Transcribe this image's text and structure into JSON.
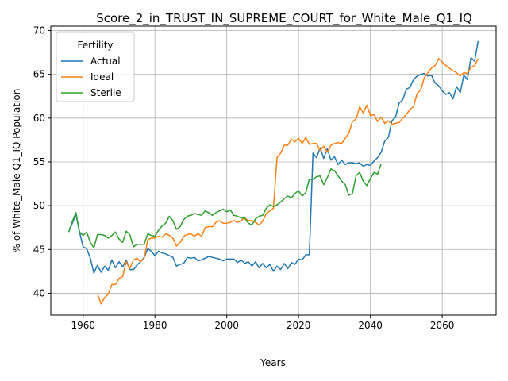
{
  "chart_data": {
    "type": "line",
    "title": "Score_2_in_TRUST_IN_SUPREME_COURT_for_White_Male_Q1_IQ",
    "xlabel": "Years",
    "ylabel": "% of White_Male Q1_IQ Population",
    "xlim": [
      1951,
      2075
    ],
    "ylim": [
      37.5,
      70.5
    ],
    "xticks": [
      1960,
      1980,
      2000,
      2020,
      2040,
      2060
    ],
    "yticks": [
      40,
      45,
      50,
      55,
      60,
      65,
      70
    ],
    "grid": true,
    "legend": {
      "title": "Fertility",
      "position": "top-left"
    },
    "series": [
      {
        "name": "Actual",
        "color": "#1f77b4",
        "points": [
          [
            1956,
            47.0
          ],
          [
            1957,
            48.0
          ],
          [
            1958,
            49.0
          ],
          [
            1959,
            47.0
          ],
          [
            1960,
            45.3
          ],
          [
            1961,
            45.1
          ],
          [
            1962,
            44.0
          ],
          [
            1963,
            42.3
          ],
          [
            1964,
            43.2
          ],
          [
            1965,
            42.4
          ],
          [
            1966,
            43.1
          ],
          [
            1967,
            42.6
          ],
          [
            1968,
            43.8
          ],
          [
            1969,
            42.9
          ],
          [
            1970,
            43.6
          ],
          [
            1971,
            43.0
          ],
          [
            1972,
            43.8
          ],
          [
            1973,
            42.7
          ],
          [
            1974,
            42.7
          ],
          [
            1975,
            43.2
          ],
          [
            1976,
            43.6
          ],
          [
            1977,
            44.1
          ],
          [
            1978,
            45.1
          ],
          [
            1979,
            44.8
          ],
          [
            1980,
            44.3
          ],
          [
            1981,
            44.8
          ],
          [
            1982,
            44.6
          ],
          [
            1983,
            44.5
          ],
          [
            1984,
            44.3
          ],
          [
            1985,
            44.1
          ],
          [
            1986,
            43.1
          ],
          [
            1987,
            43.3
          ],
          [
            1988,
            43.4
          ],
          [
            1989,
            44.1
          ],
          [
            1990,
            44.0
          ],
          [
            1991,
            44.1
          ],
          [
            1992,
            43.7
          ],
          [
            1993,
            43.8
          ],
          [
            1994,
            44.0
          ],
          [
            1995,
            44.2
          ],
          [
            1996,
            44.1
          ],
          [
            1997,
            44.0
          ],
          [
            1998,
            43.9
          ],
          [
            1999,
            43.7
          ],
          [
            2000,
            43.9
          ],
          [
            2001,
            43.9
          ],
          [
            2002,
            43.9
          ],
          [
            2003,
            43.5
          ],
          [
            2004,
            43.8
          ],
          [
            2005,
            43.4
          ],
          [
            2006,
            43.6
          ],
          [
            2007,
            43.1
          ],
          [
            2008,
            43.6
          ],
          [
            2009,
            42.9
          ],
          [
            2010,
            43.4
          ],
          [
            2011,
            42.9
          ],
          [
            2012,
            43.3
          ],
          [
            2013,
            42.5
          ],
          [
            2014,
            43.1
          ],
          [
            2015,
            42.7
          ],
          [
            2016,
            43.4
          ],
          [
            2017,
            42.8
          ],
          [
            2018,
            43.5
          ],
          [
            2019,
            43.3
          ],
          [
            2020,
            43.9
          ],
          [
            2021,
            43.8
          ],
          [
            2022,
            44.4
          ],
          [
            2023,
            44.4
          ],
          [
            2024,
            56.0
          ],
          [
            2025,
            55.5
          ],
          [
            2026,
            56.6
          ],
          [
            2027,
            55.4
          ],
          [
            2028,
            56.5
          ],
          [
            2029,
            55.2
          ],
          [
            2030,
            55.6
          ],
          [
            2031,
            54.7
          ],
          [
            2032,
            55.2
          ],
          [
            2033,
            54.7
          ],
          [
            2034,
            54.9
          ],
          [
            2035,
            54.9
          ],
          [
            2036,
            54.8
          ],
          [
            2037,
            54.9
          ],
          [
            2038,
            54.5
          ],
          [
            2039,
            54.7
          ],
          [
            2040,
            54.6
          ],
          [
            2041,
            55.1
          ],
          [
            2042,
            55.5
          ],
          [
            2043,
            56.1
          ],
          [
            2044,
            57.4
          ],
          [
            2045,
            57.8
          ],
          [
            2046,
            59.7
          ],
          [
            2047,
            60.1
          ],
          [
            2048,
            61.7
          ],
          [
            2049,
            62.1
          ],
          [
            2050,
            63.3
          ],
          [
            2051,
            63.5
          ],
          [
            2052,
            64.4
          ],
          [
            2053,
            64.8
          ],
          [
            2054,
            65.0
          ],
          [
            2055,
            65.1
          ],
          [
            2056,
            64.8
          ],
          [
            2057,
            64.9
          ],
          [
            2058,
            64.0
          ],
          [
            2059,
            63.7
          ],
          [
            2060,
            63.1
          ],
          [
            2061,
            62.7
          ],
          [
            2062,
            62.9
          ],
          [
            2063,
            62.2
          ],
          [
            2064,
            63.6
          ],
          [
            2065,
            62.9
          ],
          [
            2066,
            64.9
          ],
          [
            2067,
            64.4
          ],
          [
            2068,
            66.9
          ],
          [
            2069,
            66.5
          ],
          [
            2070,
            68.8
          ]
        ]
      },
      {
        "name": "Ideal",
        "color": "#ff7f0e",
        "points": [
          [
            1964,
            39.9
          ],
          [
            1965,
            38.8
          ],
          [
            1966,
            39.5
          ],
          [
            1967,
            39.9
          ],
          [
            1968,
            41.0
          ],
          [
            1969,
            41.0
          ],
          [
            1970,
            41.7
          ],
          [
            1971,
            41.9
          ],
          [
            1972,
            43.6
          ],
          [
            1973,
            42.8
          ],
          [
            1974,
            43.8
          ],
          [
            1975,
            44.0
          ],
          [
            1976,
            43.6
          ],
          [
            1977,
            44.0
          ],
          [
            1978,
            46.1
          ],
          [
            1979,
            46.3
          ],
          [
            1980,
            46.3
          ],
          [
            1981,
            46.5
          ],
          [
            1982,
            46.4
          ],
          [
            1983,
            46.8
          ],
          [
            1984,
            46.6
          ],
          [
            1985,
            46.3
          ],
          [
            1986,
            45.4
          ],
          [
            1987,
            45.8
          ],
          [
            1988,
            46.5
          ],
          [
            1989,
            46.7
          ],
          [
            1990,
            46.8
          ],
          [
            1991,
            46.5
          ],
          [
            1992,
            46.8
          ],
          [
            1993,
            46.5
          ],
          [
            1994,
            47.5
          ],
          [
            1995,
            47.6
          ],
          [
            1996,
            47.6
          ],
          [
            1997,
            48.1
          ],
          [
            1998,
            48.3
          ],
          [
            1999,
            48.0
          ],
          [
            2000,
            48.0
          ],
          [
            2001,
            48.1
          ],
          [
            2002,
            48.3
          ],
          [
            2003,
            48.1
          ],
          [
            2004,
            48.3
          ],
          [
            2005,
            48.6
          ],
          [
            2006,
            48.3
          ],
          [
            2007,
            48.3
          ],
          [
            2008,
            48.1
          ],
          [
            2009,
            47.8
          ],
          [
            2010,
            48.2
          ],
          [
            2011,
            49.1
          ],
          [
            2012,
            49.4
          ],
          [
            2013,
            49.7
          ],
          [
            2014,
            55.5
          ],
          [
            2015,
            56.0
          ],
          [
            2016,
            56.9
          ],
          [
            2017,
            56.9
          ],
          [
            2018,
            57.6
          ],
          [
            2019,
            57.3
          ],
          [
            2020,
            57.7
          ],
          [
            2021,
            57.1
          ],
          [
            2022,
            57.8
          ],
          [
            2023,
            57.0
          ],
          [
            2024,
            57.1
          ],
          [
            2025,
            57.1
          ],
          [
            2026,
            56.3
          ],
          [
            2027,
            56.8
          ],
          [
            2028,
            56.1
          ],
          [
            2029,
            56.9
          ],
          [
            2030,
            57.1
          ],
          [
            2031,
            57.2
          ],
          [
            2032,
            57.1
          ],
          [
            2033,
            57.7
          ],
          [
            2034,
            58.3
          ],
          [
            2035,
            59.6
          ],
          [
            2036,
            59.9
          ],
          [
            2037,
            61.3
          ],
          [
            2038,
            60.6
          ],
          [
            2039,
            61.5
          ],
          [
            2040,
            60.3
          ],
          [
            2041,
            60.4
          ],
          [
            2042,
            59.6
          ],
          [
            2043,
            60.1
          ],
          [
            2044,
            59.4
          ],
          [
            2045,
            59.7
          ],
          [
            2046,
            59.3
          ],
          [
            2047,
            59.4
          ],
          [
            2048,
            59.5
          ],
          [
            2049,
            60.0
          ],
          [
            2050,
            60.4
          ],
          [
            2051,
            61.0
          ],
          [
            2052,
            61.3
          ],
          [
            2053,
            62.8
          ],
          [
            2054,
            63.2
          ],
          [
            2055,
            64.6
          ],
          [
            2056,
            65.2
          ],
          [
            2057,
            65.7
          ],
          [
            2058,
            66.0
          ],
          [
            2059,
            66.8
          ],
          [
            2060,
            66.4
          ],
          [
            2061,
            66.0
          ],
          [
            2062,
            65.7
          ],
          [
            2063,
            65.4
          ],
          [
            2064,
            65.2
          ],
          [
            2065,
            64.8
          ],
          [
            2066,
            65.2
          ],
          [
            2067,
            65.1
          ],
          [
            2068,
            65.8
          ],
          [
            2069,
            66.0
          ],
          [
            2070,
            66.8
          ]
        ]
      },
      {
        "name": "Sterile",
        "color": "#2ca02c",
        "points": [
          [
            1956,
            47.0
          ],
          [
            1957,
            48.2
          ],
          [
            1958,
            49.2
          ],
          [
            1959,
            47.0
          ],
          [
            1960,
            46.6
          ],
          [
            1961,
            47.0
          ],
          [
            1962,
            45.8
          ],
          [
            1963,
            45.2
          ],
          [
            1964,
            46.7
          ],
          [
            1965,
            46.7
          ],
          [
            1966,
            46.6
          ],
          [
            1967,
            46.3
          ],
          [
            1968,
            46.6
          ],
          [
            1969,
            47.0
          ],
          [
            1970,
            46.2
          ],
          [
            1971,
            45.8
          ],
          [
            1972,
            47.1
          ],
          [
            1973,
            46.7
          ],
          [
            1974,
            45.3
          ],
          [
            1975,
            45.6
          ],
          [
            1976,
            45.6
          ],
          [
            1977,
            45.6
          ],
          [
            1978,
            46.8
          ],
          [
            1979,
            46.6
          ],
          [
            1980,
            46.5
          ],
          [
            1981,
            47.2
          ],
          [
            1982,
            47.7
          ],
          [
            1983,
            48.0
          ],
          [
            1984,
            48.8
          ],
          [
            1985,
            48.3
          ],
          [
            1986,
            47.3
          ],
          [
            1987,
            47.6
          ],
          [
            1988,
            48.4
          ],
          [
            1989,
            48.8
          ],
          [
            1990,
            48.9
          ],
          [
            1991,
            49.1
          ],
          [
            1992,
            49.0
          ],
          [
            1993,
            48.9
          ],
          [
            1994,
            49.4
          ],
          [
            1995,
            49.2
          ],
          [
            1996,
            48.9
          ],
          [
            1997,
            49.2
          ],
          [
            1998,
            49.4
          ],
          [
            1999,
            49.6
          ],
          [
            2000,
            49.3
          ],
          [
            2001,
            49.5
          ],
          [
            2002,
            48.9
          ],
          [
            2003,
            48.8
          ],
          [
            2004,
            48.6
          ],
          [
            2005,
            48.6
          ],
          [
            2006,
            48.0
          ],
          [
            2007,
            47.8
          ],
          [
            2008,
            48.5
          ],
          [
            2009,
            48.8
          ],
          [
            2010,
            48.9
          ],
          [
            2011,
            49.7
          ],
          [
            2012,
            50.1
          ],
          [
            2013,
            49.9
          ],
          [
            2014,
            50.1
          ],
          [
            2015,
            50.4
          ],
          [
            2016,
            50.8
          ],
          [
            2017,
            51.1
          ],
          [
            2018,
            50.9
          ],
          [
            2019,
            51.4
          ],
          [
            2020,
            51.7
          ],
          [
            2021,
            51.1
          ],
          [
            2022,
            51.5
          ],
          [
            2023,
            53.0
          ],
          [
            2024,
            53.0
          ],
          [
            2025,
            53.3
          ],
          [
            2026,
            53.4
          ],
          [
            2027,
            52.4
          ],
          [
            2028,
            53.2
          ],
          [
            2029,
            54.2
          ],
          [
            2030,
            54.0
          ],
          [
            2031,
            53.4
          ],
          [
            2032,
            52.8
          ],
          [
            2033,
            52.4
          ],
          [
            2034,
            51.2
          ],
          [
            2035,
            51.4
          ],
          [
            2036,
            53.4
          ],
          [
            2037,
            53.8
          ],
          [
            2038,
            52.8
          ],
          [
            2039,
            52.3
          ],
          [
            2040,
            53.1
          ],
          [
            2041,
            53.8
          ],
          [
            2042,
            53.6
          ],
          [
            2043,
            54.8
          ]
        ]
      }
    ]
  }
}
